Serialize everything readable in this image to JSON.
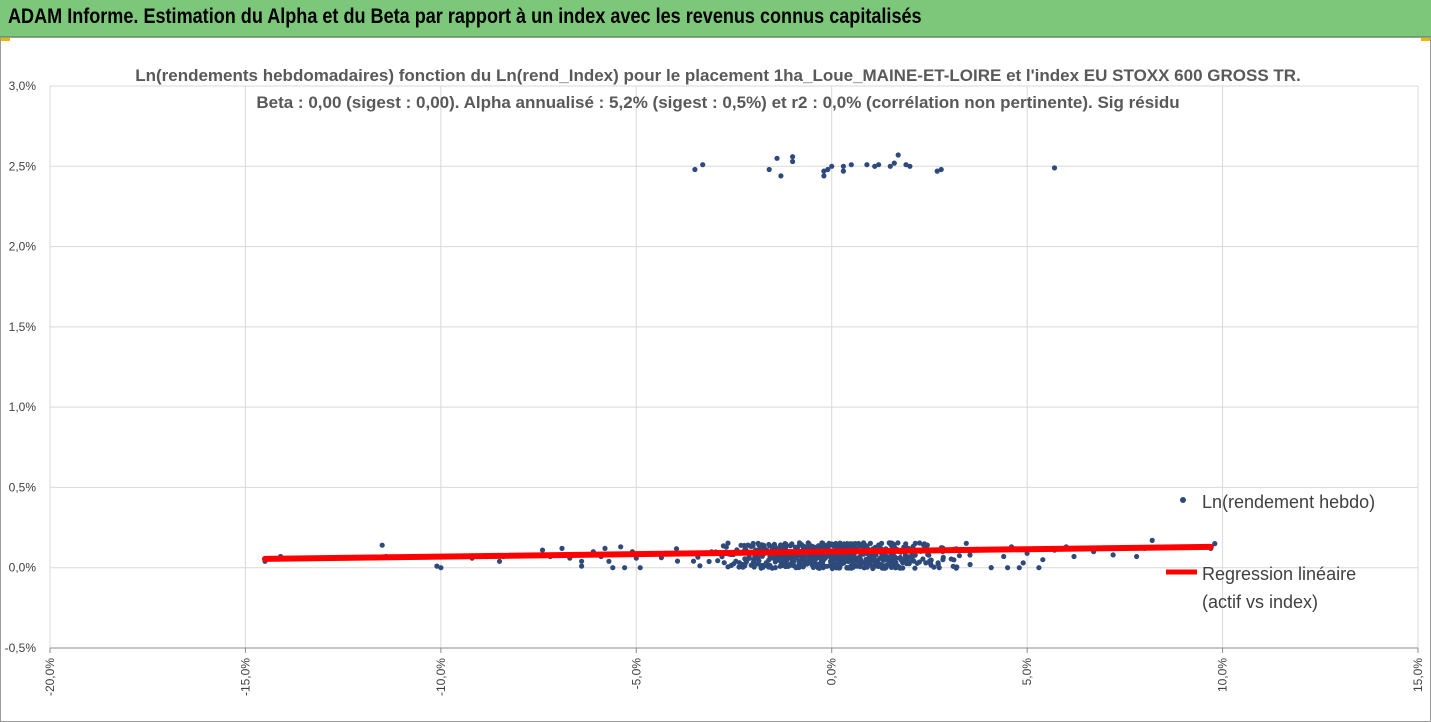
{
  "header": {
    "title": "ADAM Informe. Estimation du Alpha et du Beta par rapport à un index avec les revenus connus capitalisés"
  },
  "chart_data": {
    "type": "scatter",
    "title_line1": "Ln(rendements hebdomadaires) fonction du Ln(rend_Index) pour le placement 1ha_Loue_MAINE-ET-LOIRE et l'index EU STOXX 600 GROSS TR.",
    "title_line2": "Beta : 0,00 (sigest : 0,00). Alpha annualisé : 5,2% (sigest : 0,5%) et r2 : 0,0% (corrélation non pertinente). Sig résidu",
    "xlim": [
      -20,
      15
    ],
    "ylim": [
      -0.5,
      3.0
    ],
    "x_ticks": [
      "-20,0%",
      "-15,0%",
      "-10,0%",
      "-5,0%",
      "0,0%",
      "5,0%",
      "10,0%",
      "15,0%"
    ],
    "y_ticks": [
      "3,0%",
      "2,5%",
      "2,0%",
      "1,5%",
      "1,0%",
      "0,5%",
      "0,0%",
      "-0,5%"
    ],
    "grid": "vertical and horizontal",
    "legend_position": "right",
    "colors": {
      "points": "#2e4a7a",
      "regression": "#ff0000",
      "grid": "#d9d9d9",
      "banner": "#7dc77b"
    },
    "series": [
      {
        "name": "Ln(rendement hebdo)",
        "kind": "points",
        "points": [
          [
            -3.5,
            2.48
          ],
          [
            -3.3,
            2.51
          ],
          [
            -1.6,
            2.48
          ],
          [
            -1.4,
            2.55
          ],
          [
            -1.3,
            2.44
          ],
          [
            -1.0,
            2.53
          ],
          [
            -1.0,
            2.56
          ],
          [
            -0.2,
            2.47
          ],
          [
            -0.2,
            2.44
          ],
          [
            -0.1,
            2.48
          ],
          [
            0.0,
            2.5
          ],
          [
            0.3,
            2.5
          ],
          [
            0.3,
            2.47
          ],
          [
            0.5,
            2.51
          ],
          [
            0.9,
            2.51
          ],
          [
            1.1,
            2.5
          ],
          [
            1.2,
            2.51
          ],
          [
            1.5,
            2.5
          ],
          [
            1.6,
            2.52
          ],
          [
            1.7,
            2.57
          ],
          [
            1.9,
            2.51
          ],
          [
            2.0,
            2.5
          ],
          [
            2.7,
            2.47
          ],
          [
            2.8,
            2.48
          ],
          [
            5.7,
            2.49
          ],
          [
            -14.5,
            0.04
          ],
          [
            -14.1,
            0.07
          ],
          [
            -11.5,
            0.14
          ],
          [
            -11.4,
            0.07
          ],
          [
            -10.1,
            0.01
          ],
          [
            -10.0,
            0.0
          ],
          [
            -9.2,
            0.06
          ],
          [
            -8.5,
            0.04
          ],
          [
            -8.4,
            0.07
          ],
          [
            -7.4,
            0.11
          ],
          [
            -7.2,
            0.07
          ],
          [
            -6.9,
            0.12
          ],
          [
            -6.7,
            0.06
          ],
          [
            -6.4,
            0.04
          ],
          [
            -6.4,
            0.01
          ],
          [
            -6.1,
            0.1
          ],
          [
            -5.9,
            0.07
          ],
          [
            -5.8,
            0.12
          ],
          [
            -5.7,
            0.04
          ],
          [
            -5.6,
            0.0
          ],
          [
            -5.4,
            0.13
          ],
          [
            -5.3,
            0.0
          ],
          [
            -5.1,
            0.1
          ],
          [
            -5.0,
            0.06
          ],
          [
            -4.9,
            0.0
          ],
          [
            -8.8,
            0.07
          ],
          [
            -12.9,
            0.06
          ],
          [
            8.2,
            0.17
          ],
          [
            8.0,
            0.12
          ],
          [
            7.8,
            0.07
          ],
          [
            7.2,
            0.08
          ],
          [
            6.7,
            0.1
          ],
          [
            6.2,
            0.07
          ],
          [
            6.0,
            0.13
          ],
          [
            5.7,
            0.11
          ],
          [
            5.4,
            0.05
          ],
          [
            5.3,
            0.0
          ],
          [
            5.0,
            0.09
          ],
          [
            4.9,
            0.03
          ],
          [
            4.8,
            0.0
          ],
          [
            4.6,
            0.13
          ],
          [
            4.5,
            0.0
          ],
          [
            4.4,
            0.07
          ],
          [
            9.7,
            0.12
          ],
          [
            9.8,
            0.15
          ]
        ]
      },
      {
        "name": "Regression linéaire (actif vs index)",
        "legend_lines": [
          "Regression linéaire",
          "(actif vs index)"
        ],
        "kind": "line",
        "x": [
          -14.5,
          9.7
        ],
        "y": [
          0.055,
          0.13
        ]
      }
    ]
  }
}
